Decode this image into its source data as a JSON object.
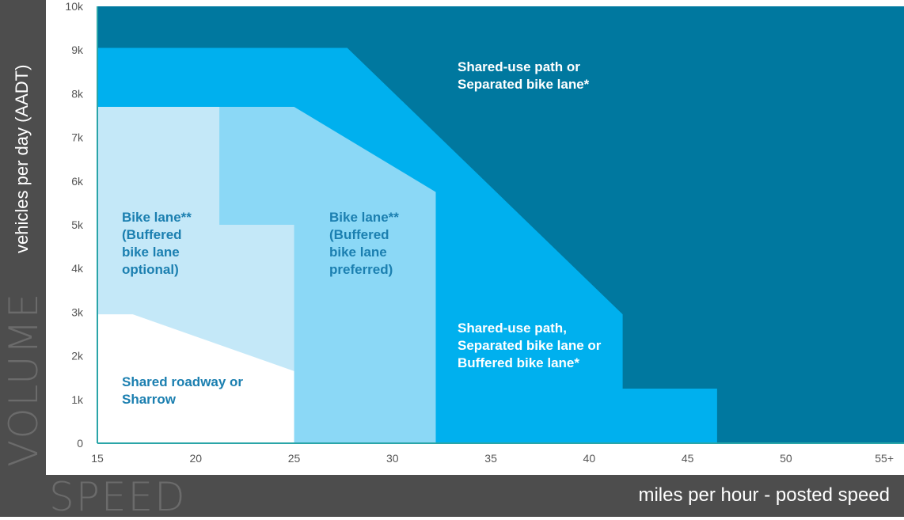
{
  "chart_data": {
    "type": "area",
    "xlabel": "miles per hour - posted speed",
    "xlabel_big": "SPEED",
    "ylabel": "vehicles per day (AADT)",
    "ylabel_big": "VOLUME",
    "xlim": [
      15,
      56
    ],
    "ylim": [
      0,
      10000
    ],
    "x_ticks": [
      {
        "value": 15,
        "label": "15"
      },
      {
        "value": 20,
        "label": "20"
      },
      {
        "value": 25,
        "label": "25"
      },
      {
        "value": 30,
        "label": "30"
      },
      {
        "value": 35,
        "label": "35"
      },
      {
        "value": 40,
        "label": "40"
      },
      {
        "value": 45,
        "label": "45"
      },
      {
        "value": 50,
        "label": "50"
      },
      {
        "value": 55,
        "label": "55+"
      }
    ],
    "y_ticks": [
      {
        "value": 0,
        "label": "0"
      },
      {
        "value": 1000,
        "label": "1k"
      },
      {
        "value": 2000,
        "label": "2k"
      },
      {
        "value": 3000,
        "label": "3k"
      },
      {
        "value": 4000,
        "label": "4k"
      },
      {
        "value": 5000,
        "label": "5k"
      },
      {
        "value": 6000,
        "label": "6k"
      },
      {
        "value": 7000,
        "label": "7k"
      },
      {
        "value": 8000,
        "label": "8k"
      },
      {
        "value": 9000,
        "label": "9k"
      },
      {
        "value": 10000,
        "label": "10k"
      }
    ],
    "regions": [
      {
        "id": "separated",
        "color": "#00789f",
        "label_lines": [
          "Shared-use path or",
          "Separated bike lane*"
        ],
        "label_color": "#ffffff",
        "polygon": [
          [
            15,
            0
          ],
          [
            56,
            0
          ],
          [
            56,
            10000
          ],
          [
            15,
            10000
          ]
        ]
      },
      {
        "id": "buffered-mixed",
        "color": "#00b0ee",
        "label_lines": [
          "Shared-use path,",
          "Separated bike lane or",
          "Buffered bike lane*"
        ],
        "label_color": "#ffffff",
        "polygon": [
          [
            15,
            0
          ],
          [
            46.5,
            0
          ],
          [
            46.5,
            1250
          ],
          [
            41.7,
            1250
          ],
          [
            41.7,
            2950
          ],
          [
            27.7,
            9050
          ],
          [
            15,
            9050
          ]
        ]
      },
      {
        "id": "bike-lane-preferred",
        "color": "#8bd8f6",
        "label_lines": [
          "Bike lane**",
          "(Buffered",
          "bike lane",
          "preferred)"
        ],
        "label_color": "#1b7fb0",
        "polygon": [
          [
            15,
            0
          ],
          [
            32.2,
            0
          ],
          [
            32.2,
            5750
          ],
          [
            25,
            7700
          ],
          [
            15,
            7700
          ]
        ]
      },
      {
        "id": "bike-lane-optional",
        "color": "#c4e8f8",
        "label_lines": [
          "Bike lane**",
          "(Buffered",
          "bike lane",
          "optional)"
        ],
        "label_color": "#1b7fb0",
        "polygon": [
          [
            15,
            0
          ],
          [
            25,
            0
          ],
          [
            25,
            5000
          ],
          [
            21.2,
            5000
          ],
          [
            21.2,
            7700
          ],
          [
            15,
            7700
          ]
        ]
      },
      {
        "id": "shared-roadway",
        "color": "#ffffff",
        "label_lines": [
          "Shared roadway or",
          "Sharrow"
        ],
        "label_color": "#1b7fb0",
        "polygon": [
          [
            15,
            0
          ],
          [
            25,
            0
          ],
          [
            25,
            1650
          ],
          [
            16.8,
            2950
          ],
          [
            15,
            2950
          ]
        ]
      }
    ]
  }
}
